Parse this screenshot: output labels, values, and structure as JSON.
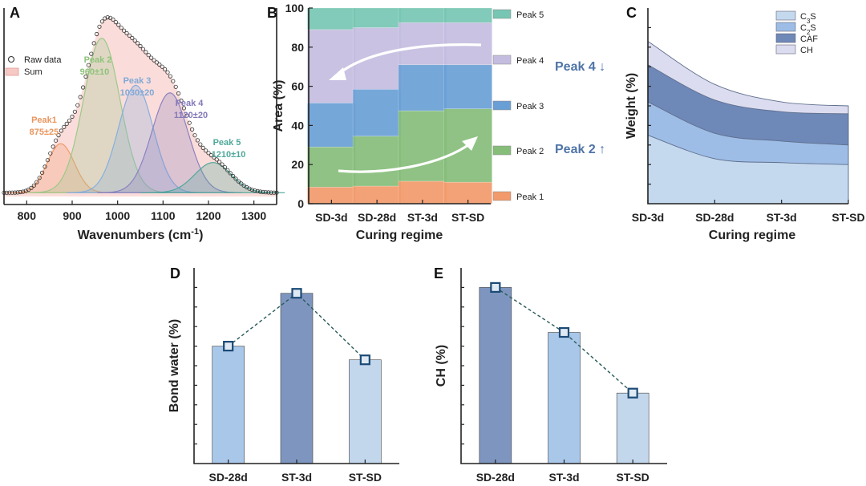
{
  "figure": {
    "panels": [
      "A",
      "B",
      "C",
      "D",
      "E"
    ],
    "colors": {
      "peak1": "#f29a6b",
      "peak2": "#86bd79",
      "peak3": "#6a9fd6",
      "peak4": "#c4bde0",
      "peak5": "#77c5b3",
      "c3s": "#c4d8ee",
      "c2s": "#9dbde6",
      "caf": "#6e88b8",
      "ch": "#dcdcf0",
      "barLight": "#a9c7e8",
      "barDark": "#7e96bf",
      "barPale": "#c2d6ec",
      "marker": "#1b4a76"
    }
  },
  "chart_data": [
    {
      "panel": "A",
      "type": "line",
      "xlabel": "Wavenumbers (cm",
      "xlabel_sup": "-1",
      "xlabel_close": ")",
      "xlim": [
        750,
        1350
      ],
      "ylim": [
        0,
        1
      ],
      "xticks": [
        800,
        900,
        1000,
        1100,
        1200,
        1300
      ],
      "legend": [
        "Raw data",
        "Sum"
      ],
      "peaks": [
        {
          "name": "Peak1",
          "range": "875±25",
          "center": 875,
          "sigma": 30,
          "amp": 0.26,
          "color": "#f29a6b"
        },
        {
          "name": "Peak 2",
          "range": "960±10",
          "center": 965,
          "sigma": 40,
          "amp": 0.82,
          "color": "#9cc98a"
        },
        {
          "name": "Peak 3",
          "range": "1030±20",
          "center": 1040,
          "sigma": 38,
          "amp": 0.57,
          "color": "#86aee0"
        },
        {
          "name": "Peak 4",
          "range": "1120±20",
          "center": 1115,
          "sigma": 40,
          "amp": 0.53,
          "color": "#8b82bf"
        },
        {
          "name": "Peak 5",
          "range": "1210±10",
          "center": 1210,
          "sigma": 40,
          "amp": 0.16,
          "color": "#4fa89a"
        }
      ],
      "baseline": 0.02
    },
    {
      "panel": "B",
      "type": "bar",
      "stacked": true,
      "xlabel": "Curing regime",
      "ylabel": "Area (%)",
      "ylim": [
        0,
        100
      ],
      "yticks": [
        0,
        20,
        40,
        60,
        80,
        100
      ],
      "categories": [
        "SD-3d",
        "SD-28d",
        "ST-3d",
        "ST-SD"
      ],
      "series": [
        {
          "name": "Peak 1",
          "values": [
            8.5,
            9,
            11.5,
            11
          ],
          "color": "#f29a6b"
        },
        {
          "name": "Peak 2",
          "values": [
            20.5,
            25.5,
            36,
            37.5
          ],
          "color": "#86bd79"
        },
        {
          "name": "Peak 3",
          "values": [
            22.5,
            24,
            23.5,
            22.5
          ],
          "color": "#6a9fd6"
        },
        {
          "name": "Peak 4",
          "values": [
            37.5,
            31.5,
            21.5,
            21.5
          ],
          "color": "#c4bde0"
        },
        {
          "name": "Peak 5",
          "values": [
            11,
            10,
            7.5,
            7.5
          ],
          "color": "#77c5b3"
        }
      ],
      "annotations": [
        "Peak 4 ↓",
        "Peak 2 ↑"
      ]
    },
    {
      "panel": "C",
      "type": "area",
      "stacked": true,
      "xlabel": "Curing regime",
      "ylabel": "Weight (%)",
      "ylim": [
        0,
        10
      ],
      "categories": [
        "SD-3d",
        "SD-28d",
        "ST-3d",
        "ST-SD"
      ],
      "series": [
        {
          "name": "C3S",
          "label_main": "C",
          "label_sub": "3",
          "label_end": "S",
          "values": [
            3.5,
            2.3,
            2.1,
            2.0
          ],
          "color": "#c4d8ee"
        },
        {
          "name": "C2S",
          "label_main": "C",
          "label_sub": "2",
          "label_end": "S",
          "values": [
            1.7,
            1.3,
            1.1,
            1.0
          ],
          "color": "#9dbde6"
        },
        {
          "name": "CAF",
          "label_main": "CAF",
          "label_sub": "",
          "label_end": "",
          "values": [
            1.9,
            1.7,
            1.5,
            1.6
          ],
          "color": "#6e88b8"
        },
        {
          "name": "CH",
          "label_main": "CH",
          "label_sub": "",
          "label_end": "",
          "values": [
            1.2,
            0.8,
            0.5,
            0.4
          ],
          "color": "#dcdcf0"
        }
      ]
    },
    {
      "panel": "D",
      "type": "bar",
      "xlabel": "",
      "ylabel": "Bond water (%)",
      "ylim": [
        0,
        10
      ],
      "categories": [
        "SD-28d",
        "ST-3d",
        "ST-SD"
      ],
      "values": [
        6.0,
        8.7,
        5.3
      ],
      "colors": [
        "#a9c7e8",
        "#7e96bf",
        "#c2d6ec"
      ]
    },
    {
      "panel": "E",
      "type": "bar",
      "xlabel": "",
      "ylabel": "CH (%)",
      "ylim": [
        0,
        10
      ],
      "categories": [
        "SD-28d",
        "ST-3d",
        "ST-SD"
      ],
      "values": [
        9.0,
        6.7,
        3.6
      ],
      "colors": [
        "#7e96bf",
        "#a9c7e8",
        "#c2d6ec"
      ]
    }
  ]
}
